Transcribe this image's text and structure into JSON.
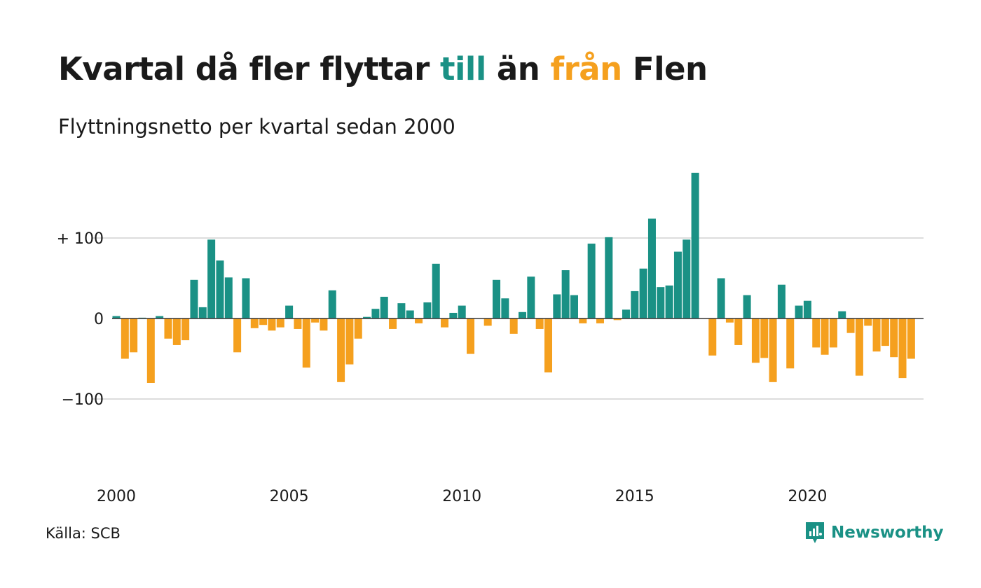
{
  "title": {
    "part1": "Kvartal då fler flyttar ",
    "part2": "till",
    "part3": " än ",
    "part4": "från",
    "part5": " Flen"
  },
  "subtitle": "Flyttningsnetto per kvartal sedan 2000",
  "source": "Källa: SCB",
  "brand": "Newsworthy",
  "colors": {
    "positive": "#1a9185",
    "negative": "#f5a01e",
    "text": "#1a1a1a",
    "grid": "#dddddd"
  },
  "chart_data": {
    "type": "bar",
    "xlabel": "",
    "ylabel": "",
    "ylim": [
      -200,
      190
    ],
    "y_ticks": [
      {
        "value": 100,
        "label": "+ 100"
      },
      {
        "value": 0,
        "label": "0"
      },
      {
        "value": -100,
        "label": "−100"
      }
    ],
    "x_ticks": [
      "2000",
      "2005",
      "2010",
      "2015",
      "2020"
    ],
    "x_tick_years": [
      2000,
      2005,
      2010,
      2015,
      2020
    ],
    "start_year": 2000,
    "values": [
      3,
      -50,
      -42,
      1,
      -80,
      3,
      -25,
      -33,
      -27,
      48,
      14,
      98,
      72,
      51,
      -42,
      50,
      -12,
      -8,
      -15,
      -11,
      16,
      -13,
      -61,
      -5,
      -15,
      35,
      -79,
      -57,
      -25,
      2,
      12,
      27,
      -13,
      19,
      10,
      -6,
      20,
      68,
      -11,
      7,
      16,
      -44,
      0,
      -9,
      48,
      25,
      -19,
      8,
      52,
      -13,
      -67,
      30,
      60,
      29,
      -6,
      93,
      -6,
      101,
      -2,
      11,
      34,
      62,
      124,
      39,
      41,
      83,
      98,
      181,
      0,
      -46,
      50,
      -5,
      -33,
      29,
      -55,
      -49,
      -79,
      42,
      -62,
      16,
      22,
      -36,
      -45,
      -36,
      9,
      -18,
      -71,
      -9,
      -41,
      -34,
      -48,
      -74,
      -50
    ]
  }
}
